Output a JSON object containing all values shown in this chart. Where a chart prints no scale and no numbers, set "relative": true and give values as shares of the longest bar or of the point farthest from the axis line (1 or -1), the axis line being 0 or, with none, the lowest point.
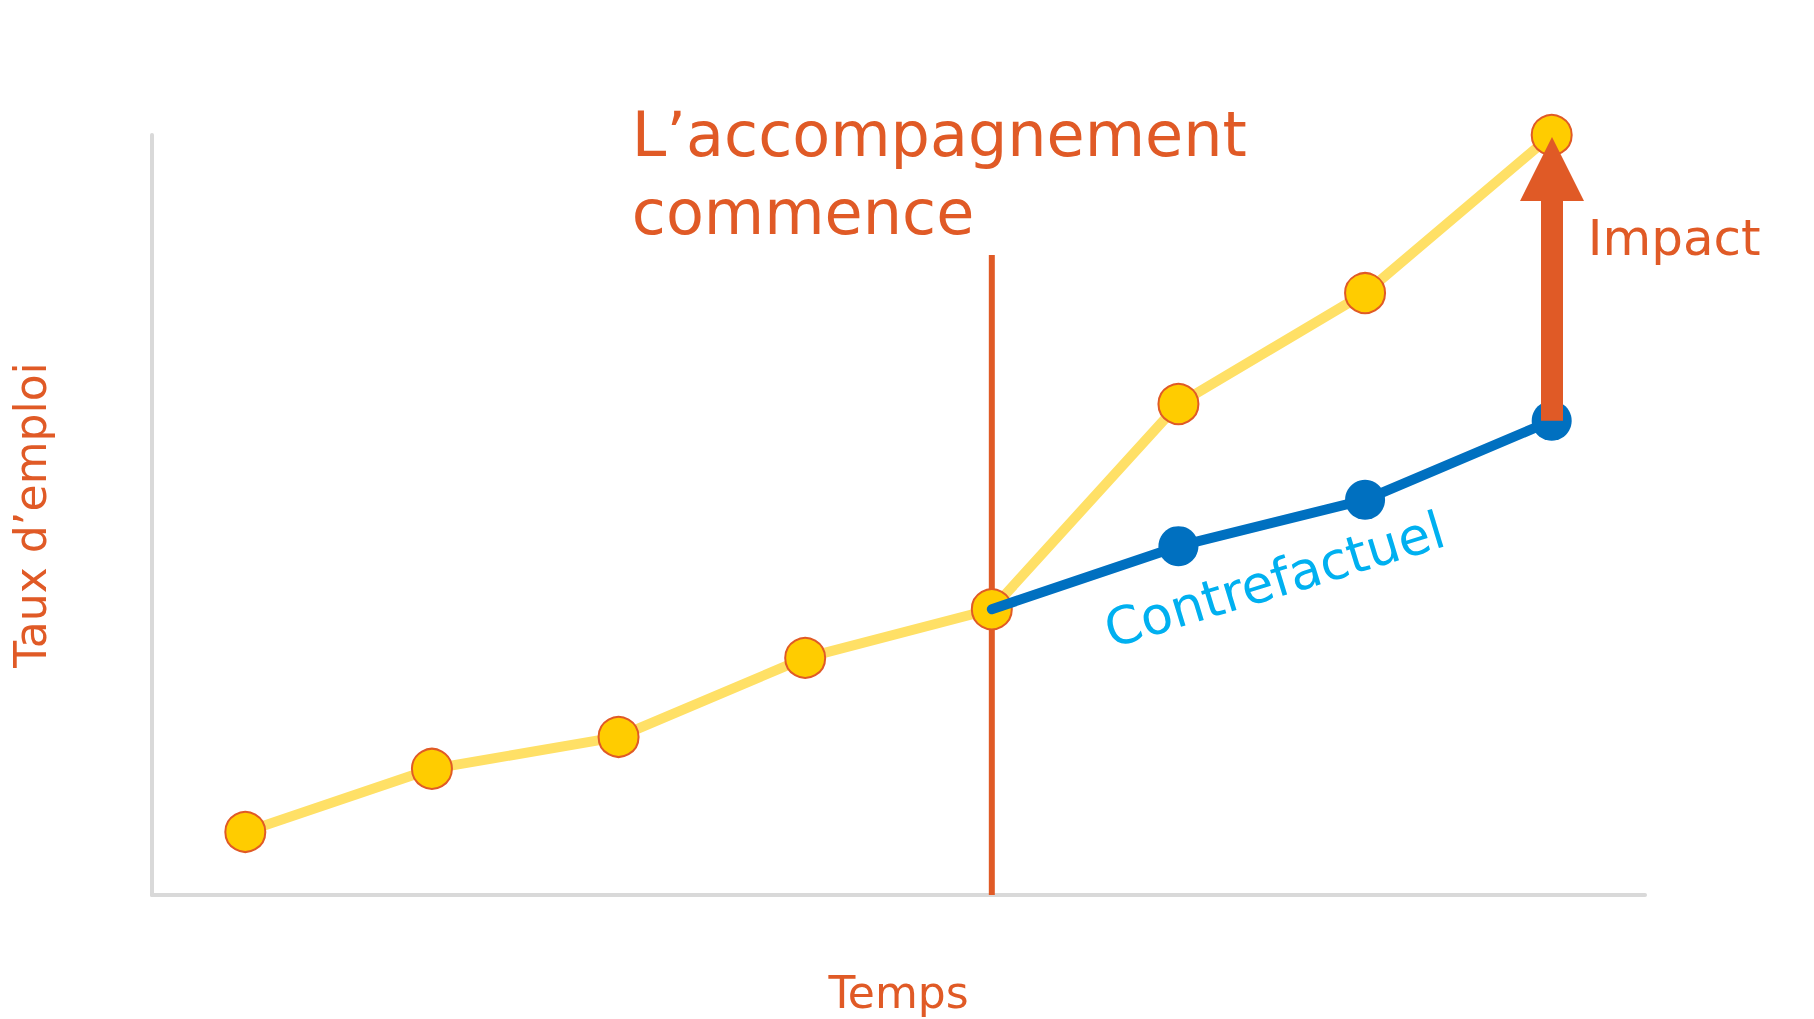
{
  "chart_data": {
    "type": "line",
    "relative": true,
    "xlabel": "Temps",
    "ylabel": "Taux d’emploi",
    "categories": [
      null,
      null,
      null,
      null,
      null,
      null,
      null,
      null
    ],
    "series": [
      {
        "color": "#ffcc00",
        "values": [
          0.083,
          0.166,
          0.208,
          0.312,
          0.376,
          0.646,
          0.792,
          1
        ]
      },
      {
        "name": "Contrefactuel",
        "color": "#0070c0",
        "values": [
          null,
          null,
          null,
          null,
          0.376,
          0.459,
          0.52,
          0.624
        ]
      }
    ],
    "marker": "circle",
    "line_style": "solid",
    "grid": false,
    "annotations": [
      "L’accompagnement commence",
      "Impact"
    ]
  }
}
